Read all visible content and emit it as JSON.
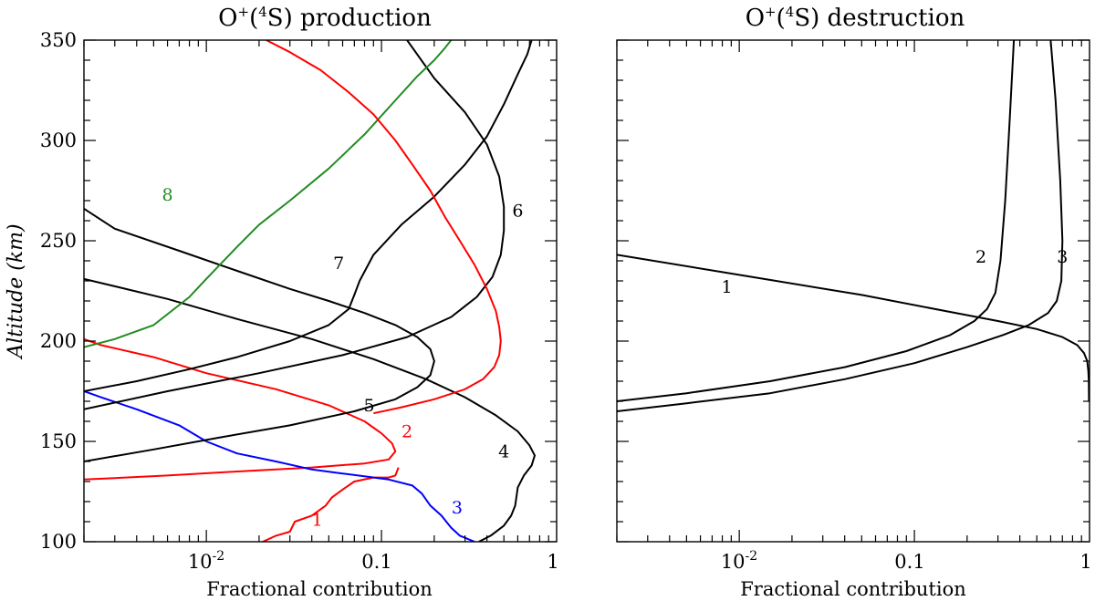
{
  "chart_data": [
    {
      "type": "line",
      "title_main": "O",
      "title_sup1": "+",
      "title_mid": "(",
      "title_sup2": "4",
      "title_end": "S) production",
      "xlabel": "Fractional contribution",
      "ylabel": "Altitude (km)",
      "xscale": "log",
      "xlim": [
        0.002,
        1
      ],
      "ylim": [
        100,
        350
      ],
      "xticks_major": [
        {
          "value": 0.01,
          "base": "10",
          "exp": "-2"
        },
        {
          "value": 0.1,
          "label": "0.1"
        },
        {
          "value": 1,
          "label": "1"
        }
      ],
      "yticks_major": [
        100,
        150,
        200,
        250,
        300,
        350
      ],
      "series": [
        {
          "name": "1",
          "color": "#ff0000",
          "label_at": [
            0.043,
            108
          ],
          "x": [
            0.021,
            0.025,
            0.03,
            0.032,
            0.04,
            0.048,
            0.052,
            0.06,
            0.07,
            0.09,
            0.11,
            0.12,
            0.125
          ],
          "y": [
            100,
            103,
            105,
            110,
            113,
            118,
            122,
            126,
            130,
            132,
            132,
            133,
            137
          ]
        },
        {
          "name": "2",
          "color": "#ff0000",
          "label_at": [
            0.14,
            152
          ],
          "x": [
            0.002,
            0.006,
            0.015,
            0.04,
            0.08,
            0.11,
            0.12,
            0.115,
            0.1,
            0.08,
            0.05,
            0.025,
            0.01,
            0.005,
            0.0025,
            0.002
          ],
          "y": [
            131,
            133,
            135,
            137,
            139,
            141,
            145,
            149,
            154,
            160,
            168,
            176,
            184,
            192,
            198,
            201
          ]
        },
        {
          "name": "3",
          "color": "#0000ff",
          "label_at": [
            0.27,
            114
          ],
          "x": [
            0.34,
            0.28,
            0.25,
            0.22,
            0.19,
            0.17,
            0.15,
            0.11,
            0.06,
            0.04,
            0.025,
            0.015,
            0.01,
            0.007,
            0.004,
            0.0025,
            0.002
          ],
          "y": [
            100,
            103,
            107,
            113,
            118,
            124,
            128,
            131,
            134,
            136,
            140,
            144,
            150,
            158,
            166,
            172,
            175
          ]
        },
        {
          "name": "4",
          "color": "#000000",
          "label_at": [
            0.5,
            142
          ],
          "x": [
            0.36,
            0.42,
            0.5,
            0.55,
            0.58,
            0.6,
            0.65,
            0.72,
            0.75,
            0.7,
            0.6,
            0.45,
            0.3,
            0.18,
            0.09,
            0.04,
            0.015,
            0.006,
            0.002
          ],
          "y": [
            100,
            103,
            108,
            113,
            118,
            127,
            133,
            138,
            143,
            148,
            155,
            163,
            172,
            181,
            191,
            201,
            211,
            221,
            231
          ]
        },
        {
          "name": "5",
          "color": "#000000",
          "label_at": [
            0.085,
            165
          ],
          "x": [
            0.002,
            0.005,
            0.012,
            0.03,
            0.07,
            0.12,
            0.16,
            0.19,
            0.2,
            0.19,
            0.16,
            0.12,
            0.08,
            0.05,
            0.03,
            0.015,
            0.007,
            0.003,
            0.002
          ],
          "y": [
            140,
            146,
            152,
            158,
            165,
            171,
            177,
            183,
            190,
            196,
            202,
            208,
            214,
            220,
            226,
            235,
            245,
            256,
            266
          ]
        },
        {
          "name": "6",
          "color": "#000000",
          "label_at": [
            0.6,
            262
          ],
          "x": [
            0.002,
            0.006,
            0.02,
            0.06,
            0.14,
            0.25,
            0.35,
            0.43,
            0.48,
            0.5,
            0.5,
            0.47,
            0.4,
            0.3,
            0.2,
            0.14
          ],
          "y": [
            166,
            175,
            184,
            193,
            202,
            212,
            222,
            232,
            243,
            255,
            267,
            282,
            298,
            314,
            331,
            350
          ]
        },
        {
          "name": "7",
          "color": "#000000",
          "label_at": [
            0.057,
            236
          ],
          "x": [
            0.002,
            0.004,
            0.008,
            0.015,
            0.03,
            0.05,
            0.065,
            0.07,
            0.075,
            0.09,
            0.13,
            0.2,
            0.3,
            0.4,
            0.5,
            0.6,
            0.68,
            0.72
          ],
          "y": [
            175,
            180,
            186,
            192,
            200,
            208,
            216,
            223,
            230,
            243,
            258,
            272,
            288,
            302,
            318,
            333,
            343,
            350
          ]
        },
        {
          "name": "8",
          "color": "#228b22",
          "label_at": [
            0.006,
            270
          ],
          "x": [
            0.002,
            0.003,
            0.005,
            0.008,
            0.01,
            0.015,
            0.02,
            0.03,
            0.05,
            0.08,
            0.12,
            0.16,
            0.2,
            0.23,
            0.25
          ],
          "y": [
            197,
            201,
            208,
            222,
            231,
            247,
            258,
            270,
            286,
            303,
            320,
            332,
            340,
            346,
            350
          ]
        },
        {
          "name": "",
          "color": "#ff0000",
          "x": [
            0.022,
            0.03,
            0.045,
            0.065,
            0.09,
            0.12,
            0.15,
            0.19,
            0.23,
            0.28,
            0.34,
            0.4,
            0.45,
            0.47,
            0.48,
            0.47,
            0.44,
            0.38,
            0.3,
            0.2,
            0.13,
            0.09
          ],
          "y": [
            350,
            344,
            335,
            324,
            313,
            300,
            288,
            275,
            262,
            250,
            238,
            226,
            215,
            207,
            200,
            193,
            187,
            181,
            176,
            171,
            167,
            164
          ]
        }
      ]
    },
    {
      "type": "line",
      "title_main": "O",
      "title_sup1": "+",
      "title_mid": "(",
      "title_sup2": "4",
      "title_end": "S) destruction",
      "xlabel": "Fractional contribution",
      "xscale": "log",
      "xlim": [
        0.002,
        1
      ],
      "ylim": [
        100,
        350
      ],
      "xticks_major": [
        {
          "value": 0.01,
          "base": "10",
          "exp": "-2"
        },
        {
          "value": 0.1,
          "label": "0.1"
        },
        {
          "value": 1,
          "label": "1"
        }
      ],
      "yticks_major": [
        100,
        150,
        200,
        250,
        300,
        350
      ],
      "series": [
        {
          "name": "1",
          "color": "#000000",
          "label_at": [
            0.0085,
            224
          ],
          "x": [
            0.002,
            0.01,
            0.05,
            0.15,
            0.3,
            0.5,
            0.7,
            0.85,
            0.93,
            0.97,
            0.985,
            0.99,
            0.993
          ],
          "y": [
            243,
            233,
            223,
            215,
            210,
            206,
            202,
            198,
            194,
            190,
            185,
            180,
            170
          ]
        },
        {
          "name": "2",
          "color": "#000000",
          "label_at": [
            0.24,
            239
          ],
          "x": [
            0.002,
            0.005,
            0.015,
            0.04,
            0.09,
            0.16,
            0.22,
            0.26,
            0.29,
            0.31,
            0.33,
            0.35,
            0.37
          ],
          "y": [
            170,
            174,
            180,
            187,
            195,
            203,
            210,
            216,
            224,
            240,
            270,
            310,
            350
          ]
        },
        {
          "name": "3",
          "color": "#000000",
          "label_at": [
            0.7,
            239
          ],
          "x": [
            0.002,
            0.005,
            0.015,
            0.04,
            0.1,
            0.2,
            0.32,
            0.45,
            0.58,
            0.65,
            0.69,
            0.7,
            0.68,
            0.64,
            0.6
          ],
          "y": [
            165,
            169,
            174,
            181,
            189,
            197,
            203,
            208,
            214,
            220,
            230,
            250,
            280,
            320,
            350
          ]
        }
      ]
    }
  ]
}
